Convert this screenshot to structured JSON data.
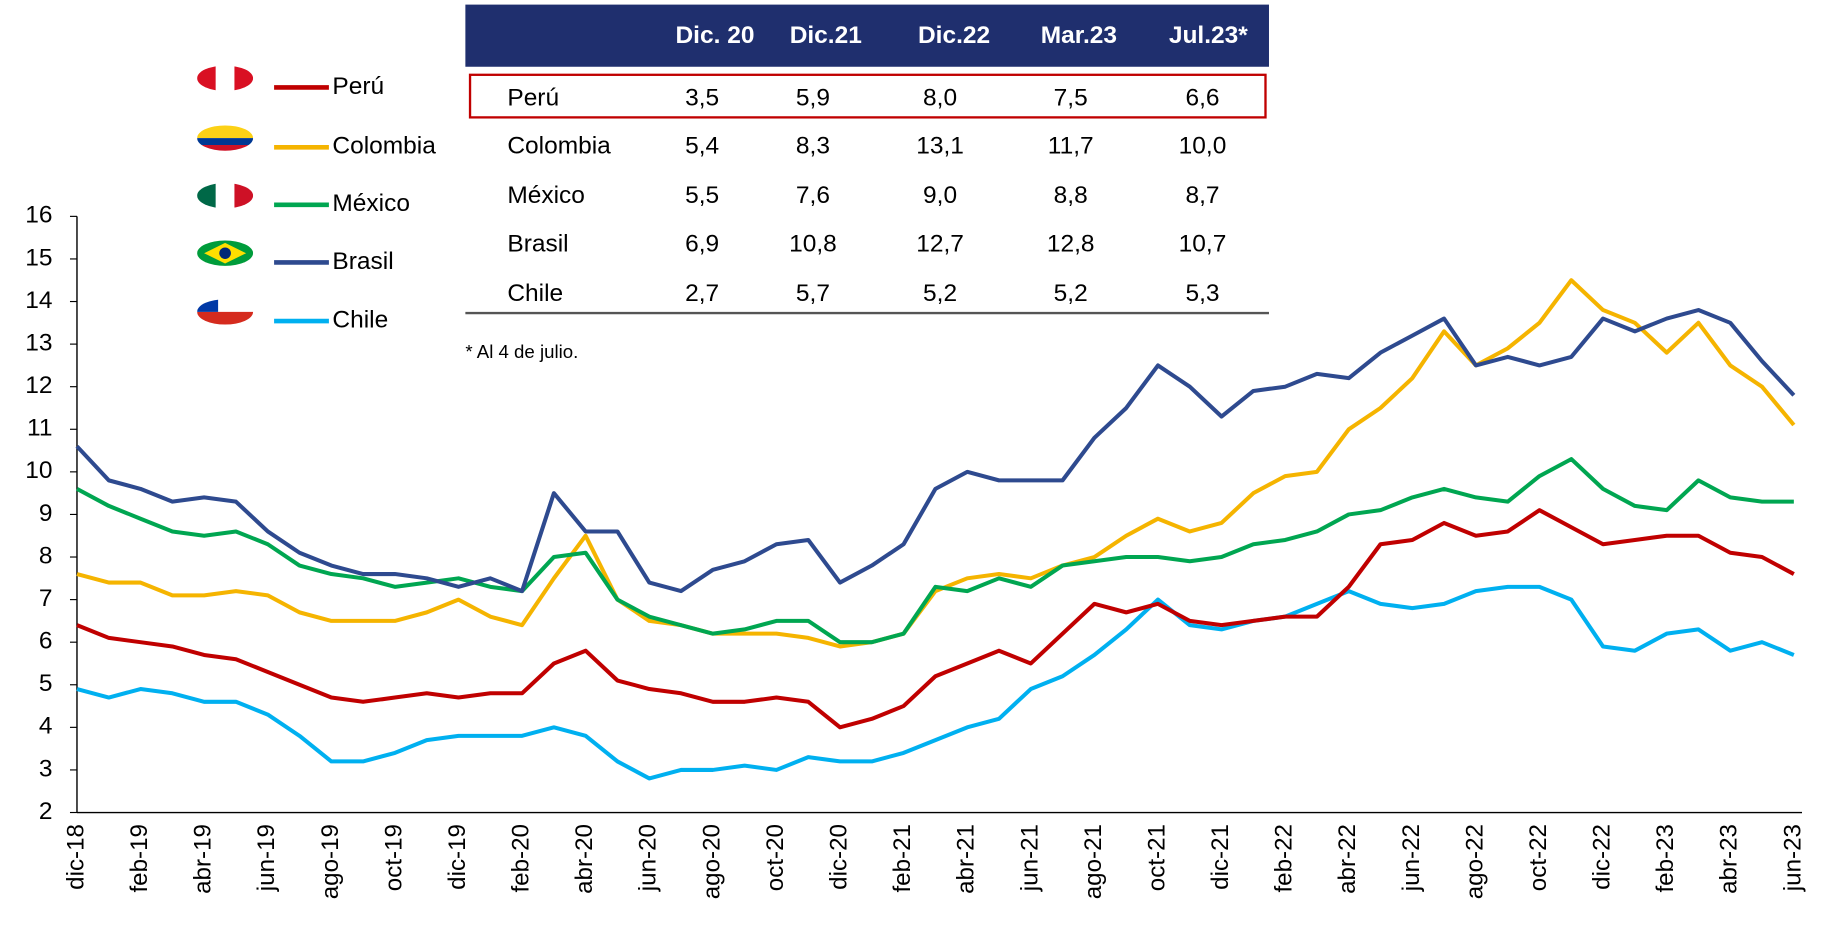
{
  "chart_data": {
    "type": "line",
    "categories": [
      "dic-18",
      null,
      "feb-19",
      null,
      "abr-19",
      null,
      "jun-19",
      null,
      "ago-19",
      null,
      "oct-19",
      null,
      "dic-19",
      null,
      "feb-20",
      null,
      "abr-20",
      null,
      "jun-20",
      null,
      "ago-20",
      null,
      "oct-20",
      null,
      "dic-20",
      null,
      "feb-21",
      null,
      "abr-21",
      null,
      "jun-21",
      null,
      "ago-21",
      null,
      "oct-21",
      null,
      "dic-21",
      null,
      "feb-22",
      null,
      "abr-22",
      null,
      "jun-22",
      null,
      "ago-22",
      null,
      "oct-22",
      null,
      "dic-22",
      null,
      "feb-23",
      null,
      "abr-23",
      null,
      "jun-23"
    ],
    "series": [
      {
        "name": "Perú",
        "color": "#c00000",
        "values": [
          6.4,
          6.1,
          6.0,
          5.9,
          5.7,
          5.6,
          5.3,
          5.0,
          4.7,
          4.6,
          4.7,
          4.8,
          4.7,
          4.8,
          4.8,
          5.5,
          5.8,
          5.1,
          4.9,
          4.8,
          4.6,
          4.6,
          4.7,
          4.6,
          4.0,
          4.2,
          4.5,
          5.2,
          5.5,
          5.8,
          5.5,
          6.2,
          6.9,
          6.7,
          6.9,
          6.5,
          6.4,
          6.5,
          6.6,
          6.6,
          7.3,
          8.3,
          8.4,
          8.8,
          8.5,
          8.6,
          9.1,
          8.7,
          8.3,
          8.4,
          8.5,
          8.5,
          8.1,
          8.0,
          7.6
        ]
      },
      {
        "name": "Colombia",
        "color": "#f5b400",
        "values": [
          7.6,
          7.4,
          7.4,
          7.1,
          7.1,
          7.2,
          7.1,
          6.7,
          6.5,
          6.5,
          6.5,
          6.7,
          7.0,
          6.6,
          6.4,
          7.5,
          8.5,
          7.0,
          6.5,
          6.4,
          6.2,
          6.2,
          6.2,
          6.1,
          5.9,
          6.0,
          6.2,
          7.2,
          7.5,
          7.6,
          7.5,
          7.8,
          8.0,
          8.5,
          8.9,
          8.6,
          8.8,
          9.5,
          9.9,
          10.0,
          11.0,
          11.5,
          12.2,
          13.3,
          12.5,
          12.9,
          13.5,
          14.5,
          13.8,
          13.5,
          12.8,
          13.5,
          12.5,
          12.0,
          11.1
        ]
      },
      {
        "name": "México",
        "color": "#00a651",
        "values": [
          9.6,
          9.2,
          8.9,
          8.6,
          8.5,
          8.6,
          8.3,
          7.8,
          7.6,
          7.5,
          7.3,
          7.4,
          7.5,
          7.3,
          7.2,
          8.0,
          8.1,
          7.0,
          6.6,
          6.4,
          6.2,
          6.3,
          6.5,
          6.5,
          6.0,
          6.0,
          6.2,
          7.3,
          7.2,
          7.5,
          7.3,
          7.8,
          7.9,
          8.0,
          8.0,
          7.9,
          8.0,
          8.3,
          8.4,
          8.6,
          9.0,
          9.1,
          9.4,
          9.6,
          9.4,
          9.3,
          9.9,
          10.3,
          9.6,
          9.2,
          9.1,
          9.8,
          9.4,
          9.3,
          9.3
        ]
      },
      {
        "name": "Brasil",
        "color": "#2e4a8f",
        "values": [
          10.6,
          9.8,
          9.6,
          9.3,
          9.4,
          9.3,
          8.6,
          8.1,
          7.8,
          7.6,
          7.6,
          7.5,
          7.3,
          7.5,
          7.2,
          9.5,
          8.6,
          8.6,
          7.4,
          7.2,
          7.7,
          7.9,
          8.3,
          8.4,
          7.4,
          7.8,
          8.3,
          9.6,
          10.0,
          9.8,
          9.8,
          9.8,
          10.8,
          11.5,
          12.5,
          12.0,
          11.3,
          11.9,
          12.0,
          12.3,
          12.2,
          12.8,
          13.2,
          13.6,
          12.5,
          12.7,
          12.5,
          12.7,
          13.6,
          13.3,
          13.6,
          13.8,
          13.5,
          12.6,
          11.8
        ]
      },
      {
        "name": "Chile",
        "color": "#00b0f0",
        "values": [
          4.9,
          4.7,
          4.9,
          4.8,
          4.6,
          4.6,
          4.3,
          3.8,
          3.2,
          3.2,
          3.4,
          3.7,
          3.8,
          3.8,
          3.8,
          4.0,
          3.8,
          3.2,
          2.8,
          3.0,
          3.0,
          3.1,
          3.0,
          3.3,
          3.2,
          3.2,
          3.4,
          3.7,
          4.0,
          4.2,
          4.9,
          5.2,
          5.7,
          6.3,
          7.0,
          6.4,
          6.3,
          6.5,
          6.6,
          6.9,
          7.2,
          6.9,
          6.8,
          6.9,
          7.2,
          7.3,
          7.3,
          7.0,
          5.9,
          5.8,
          6.2,
          6.3,
          5.8,
          6.0,
          5.7
        ]
      }
    ],
    "ylim": [
      2,
      16
    ],
    "yticks": [
      2,
      3,
      4,
      5,
      6,
      7,
      8,
      9,
      10,
      11,
      12,
      13,
      14,
      15,
      16
    ],
    "grid": false,
    "legend": "top-left"
  },
  "table": {
    "headers": [
      "Dic. 20",
      "Dic.21",
      "Dic.22",
      "Mar.23",
      "Jul.23*"
    ],
    "rows": [
      [
        "Perú",
        "3,5",
        "5,9",
        "8,0",
        "7,5",
        "6,6"
      ],
      [
        "Colombia",
        "5,4",
        "8,3",
        "13,1",
        "11,7",
        "10,0"
      ],
      [
        "México",
        "5,5",
        "7,6",
        "9,0",
        "8,8",
        "8,7"
      ],
      [
        "Brasil",
        "6,9",
        "10,8",
        "12,7",
        "12,8",
        "10,7"
      ],
      [
        "Chile",
        "2,7",
        "5,7",
        "5,2",
        "5,2",
        "5,3"
      ]
    ],
    "highlighted_row": 0
  },
  "note": "* Al 4 de julio."
}
